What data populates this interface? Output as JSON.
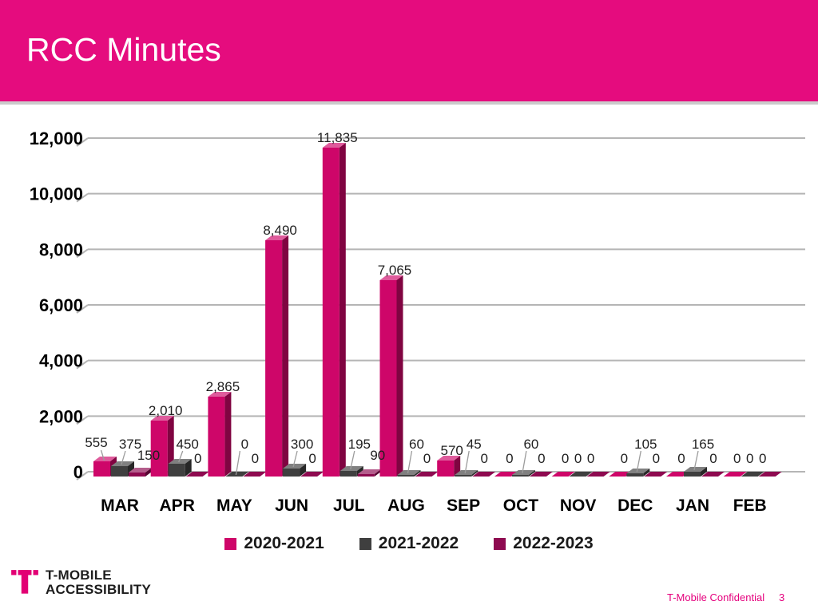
{
  "slide": {
    "title": "RCC Minutes",
    "logo": {
      "line1": "T-MOBILE",
      "line2": "ACCESSIBILITY"
    },
    "footer": {
      "confidential": "T-Mobile Confidential",
      "page_number": "3"
    }
  },
  "colors": {
    "header_bar": "#E50C7E",
    "header_border": "#CBCBCB",
    "gridline": "#B5B5B5",
    "leader_line": "#9C9C9C",
    "data_label_text": "#1F1F1F",
    "axis_label_text": "#000000",
    "footer_text": "#E5007D",
    "logo_magenta": "#E20074",
    "logo_text": "#1D1D1D"
  },
  "chart_data": {
    "type": "bar",
    "style": "3d-clustered-column",
    "title": "RCC Minutes",
    "xlabel": "",
    "ylabel": "",
    "categories": [
      "MAR",
      "APR",
      "MAY",
      "JUN",
      "JUL",
      "AUG",
      "SEP",
      "OCT",
      "NOV",
      "DEC",
      "JAN",
      "FEB"
    ],
    "series": [
      {
        "name": "2020-2021",
        "color": "#CE0669",
        "values": [
          555,
          2010,
          2865,
          8490,
          11835,
          7065,
          570,
          0,
          0,
          0,
          0,
          0
        ]
      },
      {
        "name": "2021-2022",
        "color": "#3F3F3F",
        "values": [
          375,
          450,
          0,
          300,
          195,
          60,
          45,
          60,
          0,
          105,
          165,
          0
        ]
      },
      {
        "name": "2022-2023",
        "color": "#8E0A50",
        "values": [
          150,
          0,
          0,
          0,
          90,
          0,
          0,
          0,
          0,
          0,
          0,
          0
        ]
      }
    ],
    "ylim": [
      0,
      12000
    ],
    "ytick_values": [
      0,
      2000,
      4000,
      6000,
      8000,
      10000,
      12000
    ],
    "ytick_labels": [
      "0",
      "2,000",
      "4,000",
      "6,000",
      "8,000",
      "10,000",
      "12,000"
    ],
    "grid": true,
    "legend_position": "bottom",
    "data_labels": true
  }
}
